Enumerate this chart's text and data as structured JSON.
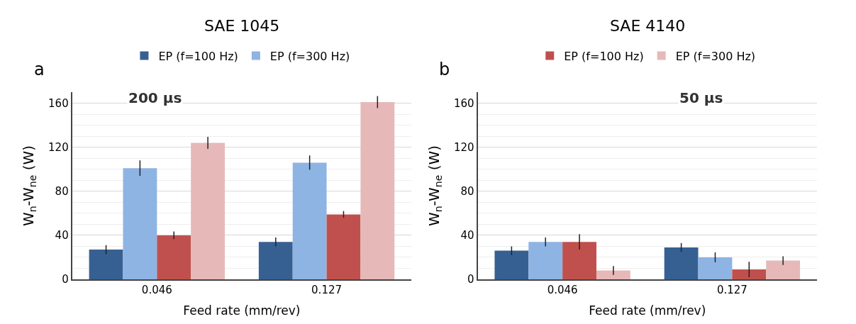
{
  "chart_data": [
    {
      "type": "bar",
      "title": "SAE 1045",
      "xlabel": "Feed rate (mm/rev)",
      "ylabel": "W$_{n}$-W$_{ne}$ (W)",
      "categories": [
        "0.046",
        "0.127"
      ],
      "series": [
        {
          "name": "EP (f=100 Hz)",
          "color": "#376092",
          "values": [
            27,
            34
          ],
          "errors": [
            4,
            4
          ]
        },
        {
          "name": "EP (f=300 Hz)",
          "color": "#8eb4e3",
          "values": [
            101,
            106
          ],
          "errors": [
            7,
            6.5
          ]
        },
        {
          "color": "#c0504d",
          "values": [
            40,
            59
          ],
          "errors": [
            3.5,
            3
          ]
        },
        {
          "color": "#e6b9b8",
          "values": [
            124,
            161
          ],
          "errors": [
            5.5,
            5.5
          ]
        }
      ],
      "ylim": [
        0,
        170
      ],
      "yticks": [
        0,
        40,
        80,
        120,
        160
      ],
      "grid": "y",
      "legend": "top",
      "annotations": [
        "a",
        "200 µs"
      ]
    },
    {
      "type": "bar",
      "title": "SAE 4140",
      "xlabel": "Feed rate (mm/rev)",
      "ylabel": "W$_{n}$-W$_{ne}$ (W)",
      "categories": [
        "0.046",
        "0.127"
      ],
      "series": [
        {
          "color": "#376092",
          "values": [
            26,
            29
          ],
          "errors": [
            4,
            4
          ]
        },
        {
          "color": "#8eb4e3",
          "values": [
            34,
            20
          ],
          "errors": [
            4,
            4.5
          ]
        },
        {
          "name": "EP (f=100 Hz)",
          "color": "#c0504d",
          "values": [
            34,
            9
          ],
          "errors": [
            7,
            7
          ]
        },
        {
          "name": "EP (f=300 Hz)",
          "color": "#e6b9b8",
          "values": [
            8,
            17
          ],
          "errors": [
            4,
            4
          ]
        }
      ],
      "ylim": [
        0,
        170
      ],
      "yticks": [
        0,
        40,
        80,
        120,
        160
      ],
      "grid": "y",
      "legend": "top",
      "annotations": [
        "b",
        "50 µs"
      ]
    }
  ]
}
